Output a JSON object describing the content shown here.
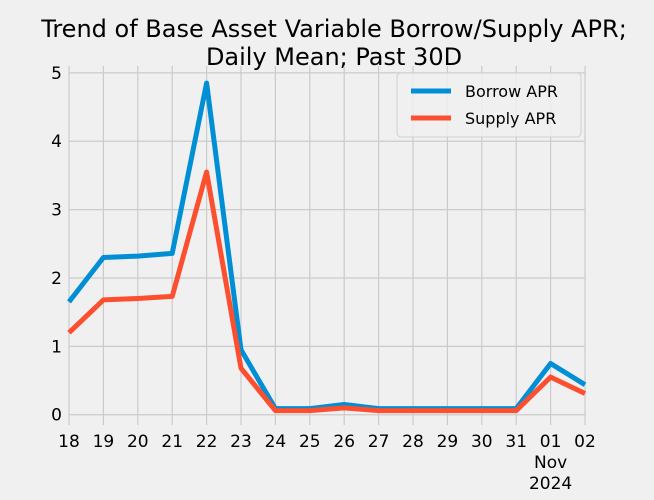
{
  "chart_data": {
    "type": "line",
    "title": "Trend of Base Asset Variable Borrow/Supply APR;",
    "subtitle": "Daily Mean; Past 30D",
    "xlabel": "",
    "ylabel": "",
    "x": [
      "2024-10-18",
      "2024-10-19",
      "2024-10-20",
      "2024-10-21",
      "2024-10-22",
      "2024-10-23",
      "2024-10-24",
      "2024-10-25",
      "2024-10-26",
      "2024-10-27",
      "2024-10-28",
      "2024-10-29",
      "2024-10-30",
      "2024-10-31",
      "2024-11-01",
      "2024-11-02"
    ],
    "x_tick_labels": [
      "18",
      "19",
      "20",
      "21",
      "22",
      "23",
      "24",
      "25",
      "26",
      "27",
      "28",
      "29",
      "30",
      "31",
      "01",
      "02"
    ],
    "x_month_label": "Nov",
    "x_year_label": "2024",
    "y_ticks": [
      0,
      1,
      2,
      3,
      4,
      5
    ],
    "ylim": [
      -0.15,
      5.1
    ],
    "grid": true,
    "legend_position": "top-right",
    "series": [
      {
        "name": "Borrow APR",
        "color": "#008fd5",
        "values": [
          1.65,
          2.3,
          2.32,
          2.36,
          4.85,
          0.95,
          0.09,
          0.09,
          0.15,
          0.09,
          0.09,
          0.09,
          0.09,
          0.09,
          0.75,
          0.44
        ]
      },
      {
        "name": "Supply APR",
        "color": "#fc4f30",
        "values": [
          1.2,
          1.68,
          1.7,
          1.73,
          3.55,
          0.68,
          0.06,
          0.06,
          0.1,
          0.06,
          0.06,
          0.06,
          0.06,
          0.06,
          0.55,
          0.31
        ]
      }
    ]
  }
}
